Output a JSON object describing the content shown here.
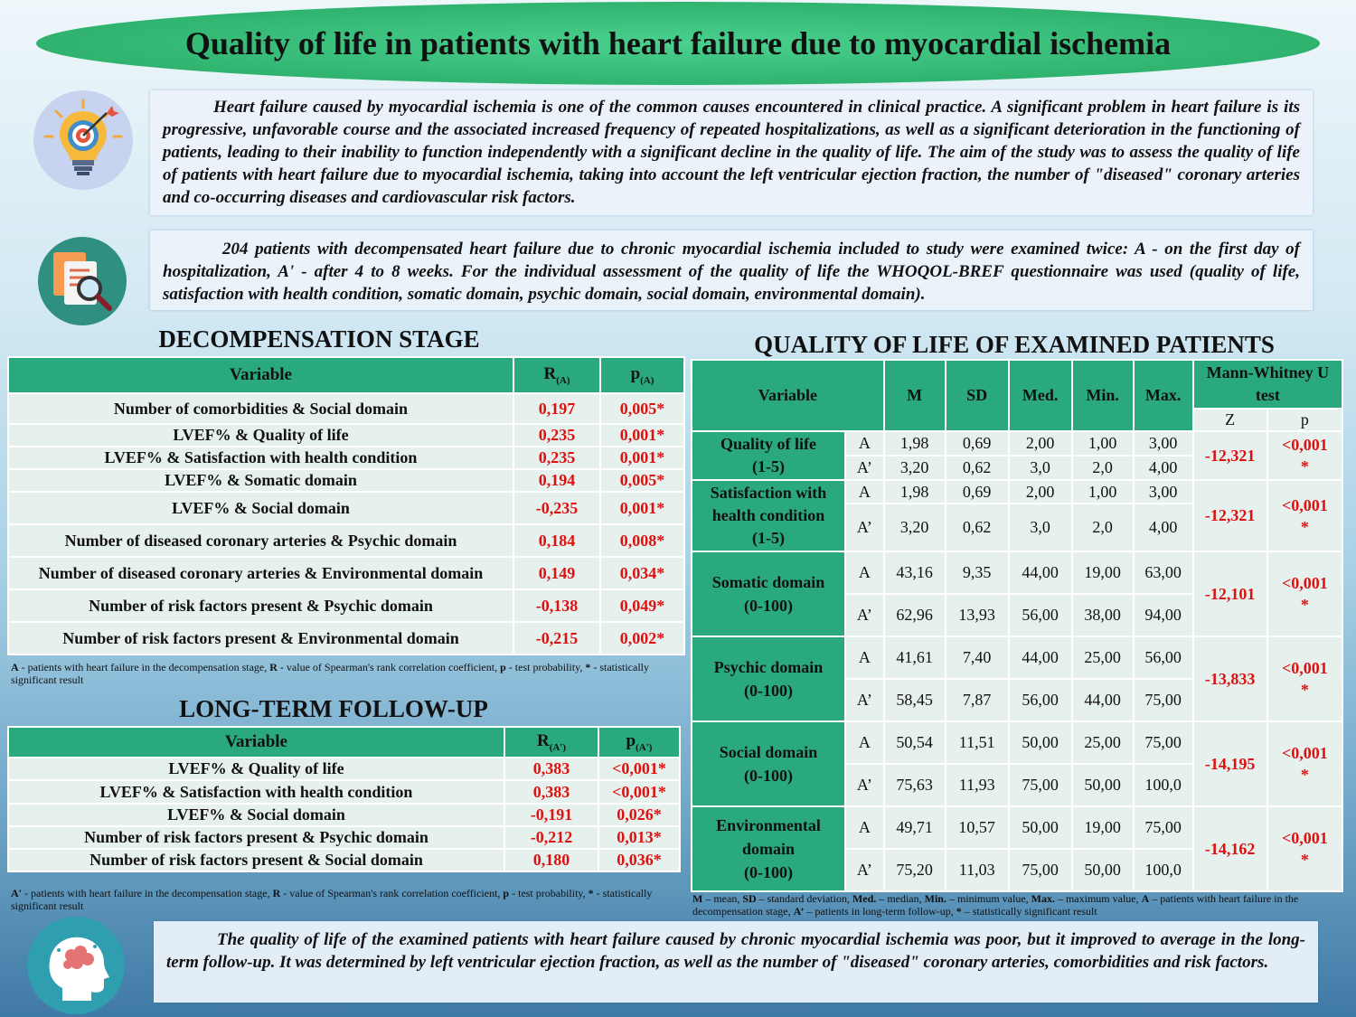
{
  "title": "Quality of life in patients with heart failure due to myocardial ischemia",
  "intro": "Heart failure caused by myocardial ischemia is one of the common causes encountered in clinical practice. A significant problem in heart failure is its progressive, unfavorable course and the associated increased frequency of repeated hospitalizations, as well as a significant deterioration in the functioning of patients, leading to their inability to function independently with a significant decline in the quality of life. The aim of the study was to assess the quality of life of patients with heart failure due to myocardial ischemia, taking into account the left ventricular ejection fraction, the number of \"diseased\" coronary arteries and co-occurring diseases and cardiovascular risk factors.",
  "methods": "204 patients with decompensated heart failure due to chronic myocardial ischemia included to study were examined twice: A - on the first day of hospitalization, A' - after 4 to 8 weeks. For the individual assessment of the quality of life the WHOQOL-BREF questionnaire was used (quality of life, satisfaction with health condition, somatic domain, psychic domain, social domain, environmental domain).",
  "decomp": {
    "title": "DECOMPENSATION STAGE",
    "head_var": "Variable",
    "head_r": "R",
    "head_r_sub": "(A)",
    "head_p": "p",
    "head_p_sub": "(A)",
    "rows": [
      {
        "v": "Number of comorbidities & Social domain",
        "r": "0,197",
        "p": "0,005*"
      },
      {
        "v": "LVEF% & Quality of life",
        "r": "0,235",
        "p": "0,001*"
      },
      {
        "v": "LVEF% & Satisfaction with health condition",
        "r": "0,235",
        "p": "0,001*"
      },
      {
        "v": "LVEF% & Somatic domain",
        "r": "0,194",
        "p": "0,005*"
      },
      {
        "v": "LVEF% & Social domain",
        "r": "-0,235",
        "p": "0,001*"
      },
      {
        "v": "Number of diseased coronary arteries & Psychic domain",
        "r": "0,184",
        "p": "0,008*"
      },
      {
        "v": "Number of diseased coronary arteries & Environmental domain",
        "r": "0,149",
        "p": "0,034*"
      },
      {
        "v": "Number of risk factors present & Psychic domain",
        "r": "-0,138",
        "p": "0,049*"
      },
      {
        "v": "Number of risk factors present & Environmental domain",
        "r": "-0,215",
        "p": "0,002*"
      }
    ],
    "note_a": "A",
    "note_a_text": " - patients with heart failure in the decompensation stage, ",
    "note_r": "R",
    "note_r_text": " - value of Spearman's rank correlation coefficient, ",
    "note_p": "p",
    "note_p_text": " - test probability, ",
    "note_s": "*",
    "note_s_text": " - statistically significant result"
  },
  "follow": {
    "title": "LONG-TERM FOLLOW-UP",
    "head_var": "Variable",
    "head_r": "R",
    "head_r_sub": "(A')",
    "head_p": "p",
    "head_p_sub": "(A')",
    "rows": [
      {
        "v": "LVEF% & Quality of life",
        "r": "0,383",
        "p": "<0,001*"
      },
      {
        "v": "LVEF% & Satisfaction with health condition",
        "r": "0,383",
        "p": "<0,001*"
      },
      {
        "v": "LVEF% & Social domain",
        "r": "-0,191",
        "p": "0,026*"
      },
      {
        "v": "Number of risk factors present & Psychic domain",
        "r": "-0,212",
        "p": "0,013*"
      },
      {
        "v": "Number of risk factors present & Social domain",
        "r": "0,180",
        "p": "0,036*"
      }
    ],
    "note_a": "A'",
    "note_a_text": " - patients with heart failure in the decompensation stage, ",
    "note_r": "R",
    "note_r_text": " - value of Spearman's rank correlation coefficient, ",
    "note_p": "p",
    "note_p_text": " - test probability, ",
    "note_s": "*",
    "note_s_text": " - statistically significant result"
  },
  "qol": {
    "title": "QUALITY OF LIFE OF EXAMINED PATIENTS",
    "head": {
      "var": "Variable",
      "m": "M",
      "sd": "SD",
      "med": "Med.",
      "min": "Min.",
      "max": "Max.",
      "mw": "Mann-Whitney U test",
      "z": "Z",
      "p": "p"
    },
    "groups": [
      {
        "name1": "Quality of life",
        "name2": "(1-5)",
        "name3": "",
        "a": [
          "A",
          "1,98",
          "0,69",
          "2,00",
          "1,00",
          "3,00"
        ],
        "b": [
          "A’",
          "3,20",
          "0,62",
          "3,0",
          "2,0",
          "4,00"
        ],
        "z": "-12,321",
        "p1": "<0,001",
        "p2": "*"
      },
      {
        "name1": "Satisfaction with",
        "name2": "health condition",
        "name3": "(1-5)",
        "a": [
          "A",
          "1,98",
          "0,69",
          "2,00",
          "1,00",
          "3,00"
        ],
        "b": [
          "A’",
          "3,20",
          "0,62",
          "3,0",
          "2,0",
          "4,00"
        ],
        "z": "-12,321",
        "p1": "<0,001",
        "p2": "*"
      },
      {
        "name1": "Somatic domain",
        "name2": "(0-100)",
        "name3": "",
        "a": [
          "A",
          "43,16",
          "9,35",
          "44,00",
          "19,00",
          "63,00"
        ],
        "b": [
          "A’",
          "62,96",
          "13,93",
          "56,00",
          "38,00",
          "94,00"
        ],
        "z": "-12,101",
        "p1": "<0,001",
        "p2": "*"
      },
      {
        "name1": "Psychic domain",
        "name2": "(0-100)",
        "name3": "",
        "a": [
          "A",
          "41,61",
          "7,40",
          "44,00",
          "25,00",
          "56,00"
        ],
        "b": [
          "A’",
          "58,45",
          "7,87",
          "56,00",
          "44,00",
          "75,00"
        ],
        "z": "-13,833",
        "p1": "<0,001",
        "p2": "*"
      },
      {
        "name1": "Social domain",
        "name2": "(0-100)",
        "name3": "",
        "a": [
          "A",
          "50,54",
          "11,51",
          "50,00",
          "25,00",
          "75,00"
        ],
        "b": [
          "A’",
          "75,63",
          "11,93",
          "75,00",
          "50,00",
          "100,0"
        ],
        "z": "-14,195",
        "p1": "<0,001",
        "p2": "*"
      },
      {
        "name1": "Environmental",
        "name2": "domain",
        "name3": "(0-100)",
        "a": [
          "A",
          "49,71",
          "10,57",
          "50,00",
          "19,00",
          "75,00"
        ],
        "b": [
          "A’",
          "75,20",
          "11,03",
          "75,00",
          "50,00",
          "100,0"
        ],
        "z": "-14,162",
        "p1": "<0,001",
        "p2": "*"
      }
    ],
    "note": {
      "k1": "M",
      "t1": " – mean, ",
      "k2": "SD",
      "t2": " – standard deviation, ",
      "k3": "Med.",
      "t3": " – median, ",
      "k4": "Min.",
      "t4": " – minimum value, ",
      "k5": "Max.",
      "t5": " – maximum value, ",
      "k6": "A",
      "t6": " – patients with heart failure in the decompensation stage, ",
      "k7": "A’",
      "t7": " – patients in long-term follow-up, ",
      "k8": "*",
      "t8": " – statistically significant result"
    }
  },
  "conclusion": "The quality of life of the examined patients with heart failure caused by chronic myocardial ischemia was poor, but it improved to average in the long-term follow-up. It was determined by left ventricular ejection fraction, as well as the number of \"diseased\" coronary arteries, comorbidities and risk factors.",
  "colors": {
    "accent_green": "#2aa97f",
    "value_red": "#e01010"
  },
  "icons": [
    "target-lightbulb-icon",
    "document-search-icon",
    "head-brain-icon"
  ]
}
